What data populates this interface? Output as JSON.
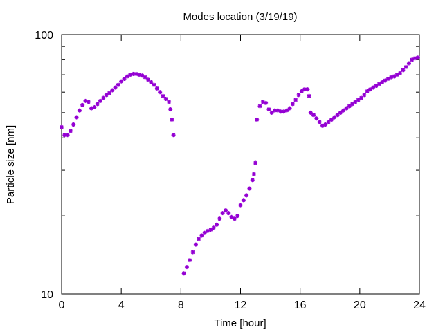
{
  "chart_data": {
    "type": "scatter",
    "title": "Modes location (3/19/19)",
    "xlabel": "Time [hour]",
    "ylabel": "Particle size [nm]",
    "xlim": [
      0,
      24
    ],
    "ylim": [
      10,
      100
    ],
    "yscale": "log",
    "grid": false,
    "legend": "none",
    "x_ticks": [
      0,
      4,
      8,
      12,
      16,
      20,
      24
    ],
    "x_tick_labels": [
      "0",
      "4",
      "8",
      "12",
      "16",
      "20",
      "24"
    ],
    "y_ticks": [
      10,
      100
    ],
    "y_tick_labels": [
      "10",
      "100"
    ],
    "marker_color": "#9400d3",
    "marker": "asterisk",
    "series": [
      {
        "segments": [
          {
            "x": [
              0.0,
              0.2,
              0.4,
              0.6,
              0.8,
              1.0,
              1.2,
              1.4,
              1.6,
              1.8,
              2.0,
              2.2,
              2.4,
              2.6,
              2.8,
              3.0,
              3.2,
              3.4,
              3.6,
              3.8,
              4.0,
              4.2,
              4.4,
              4.6,
              4.8,
              5.0,
              5.2,
              5.4,
              5.6,
              5.8,
              6.0,
              6.2,
              6.4,
              6.6,
              6.8,
              7.0,
              7.2,
              7.3,
              7.4,
              7.5
            ],
            "y": [
              44.0,
              41.0,
              41.0,
              42.5,
              45.0,
              48.0,
              51.0,
              53.5,
              55.5,
              55.0,
              52.0,
              52.5,
              54.0,
              55.5,
              57.0,
              58.5,
              59.5,
              61.0,
              62.5,
              64.0,
              66.0,
              67.5,
              69.0,
              70.0,
              70.5,
              70.5,
              70.0,
              69.5,
              68.5,
              67.0,
              65.5,
              64.0,
              62.0,
              60.0,
              58.0,
              56.5,
              55.0,
              51.5,
              47.0,
              41.0
            ]
          },
          {
            "x": [
              8.2,
              8.4,
              8.6,
              8.8,
              9.0,
              9.2,
              9.4,
              9.6,
              9.8,
              10.0,
              10.2,
              10.4,
              10.6,
              10.8,
              11.0,
              11.2,
              11.4,
              11.6,
              11.8,
              12.0,
              12.2,
              12.4,
              12.6,
              12.8,
              12.9,
              13.0
            ],
            "y": [
              12.0,
              12.7,
              13.5,
              14.5,
              15.5,
              16.3,
              16.8,
              17.2,
              17.5,
              17.7,
              18.0,
              18.5,
              19.5,
              20.5,
              21.0,
              20.5,
              19.8,
              19.5,
              20.0,
              22.0,
              23.0,
              24.0,
              25.5,
              27.5,
              29.0,
              32.0
            ]
          },
          {
            "x": [
              13.1,
              13.3,
              13.5,
              13.7,
              13.9,
              14.1,
              14.3,
              14.5,
              14.7,
              14.9,
              15.1,
              15.3,
              15.5,
              15.7,
              15.9,
              16.1,
              16.3,
              16.5,
              16.6
            ],
            "y": [
              47.0,
              53.0,
              55.0,
              54.5,
              51.5,
              50.0,
              51.0,
              51.0,
              50.5,
              50.5,
              51.0,
              52.0,
              54.0,
              56.0,
              58.5,
              60.5,
              61.5,
              61.5,
              58.0
            ]
          },
          {
            "x": [
              16.7,
              16.9,
              17.1,
              17.3,
              17.5,
              17.7,
              17.9,
              18.1,
              18.3,
              18.5,
              18.7,
              18.9,
              19.1,
              19.3,
              19.5,
              19.7,
              19.9,
              20.1,
              20.3,
              20.5,
              20.7,
              20.9,
              21.1,
              21.3,
              21.5,
              21.7,
              21.9,
              22.1,
              22.3,
              22.5,
              22.7,
              22.9,
              23.1,
              23.3,
              23.5,
              23.7,
              23.9
            ],
            "y": [
              50.0,
              49.0,
              47.5,
              46.0,
              44.5,
              45.0,
              46.0,
              47.0,
              48.0,
              49.0,
              50.0,
              51.0,
              52.0,
              53.0,
              54.0,
              55.0,
              56.0,
              57.0,
              58.5,
              60.5,
              61.5,
              62.5,
              63.5,
              64.5,
              65.5,
              66.5,
              67.5,
              68.5,
              69.0,
              70.0,
              71.0,
              73.0,
              75.0,
              77.5,
              80.0,
              81.0,
              81.5
            ]
          }
        ]
      }
    ]
  }
}
